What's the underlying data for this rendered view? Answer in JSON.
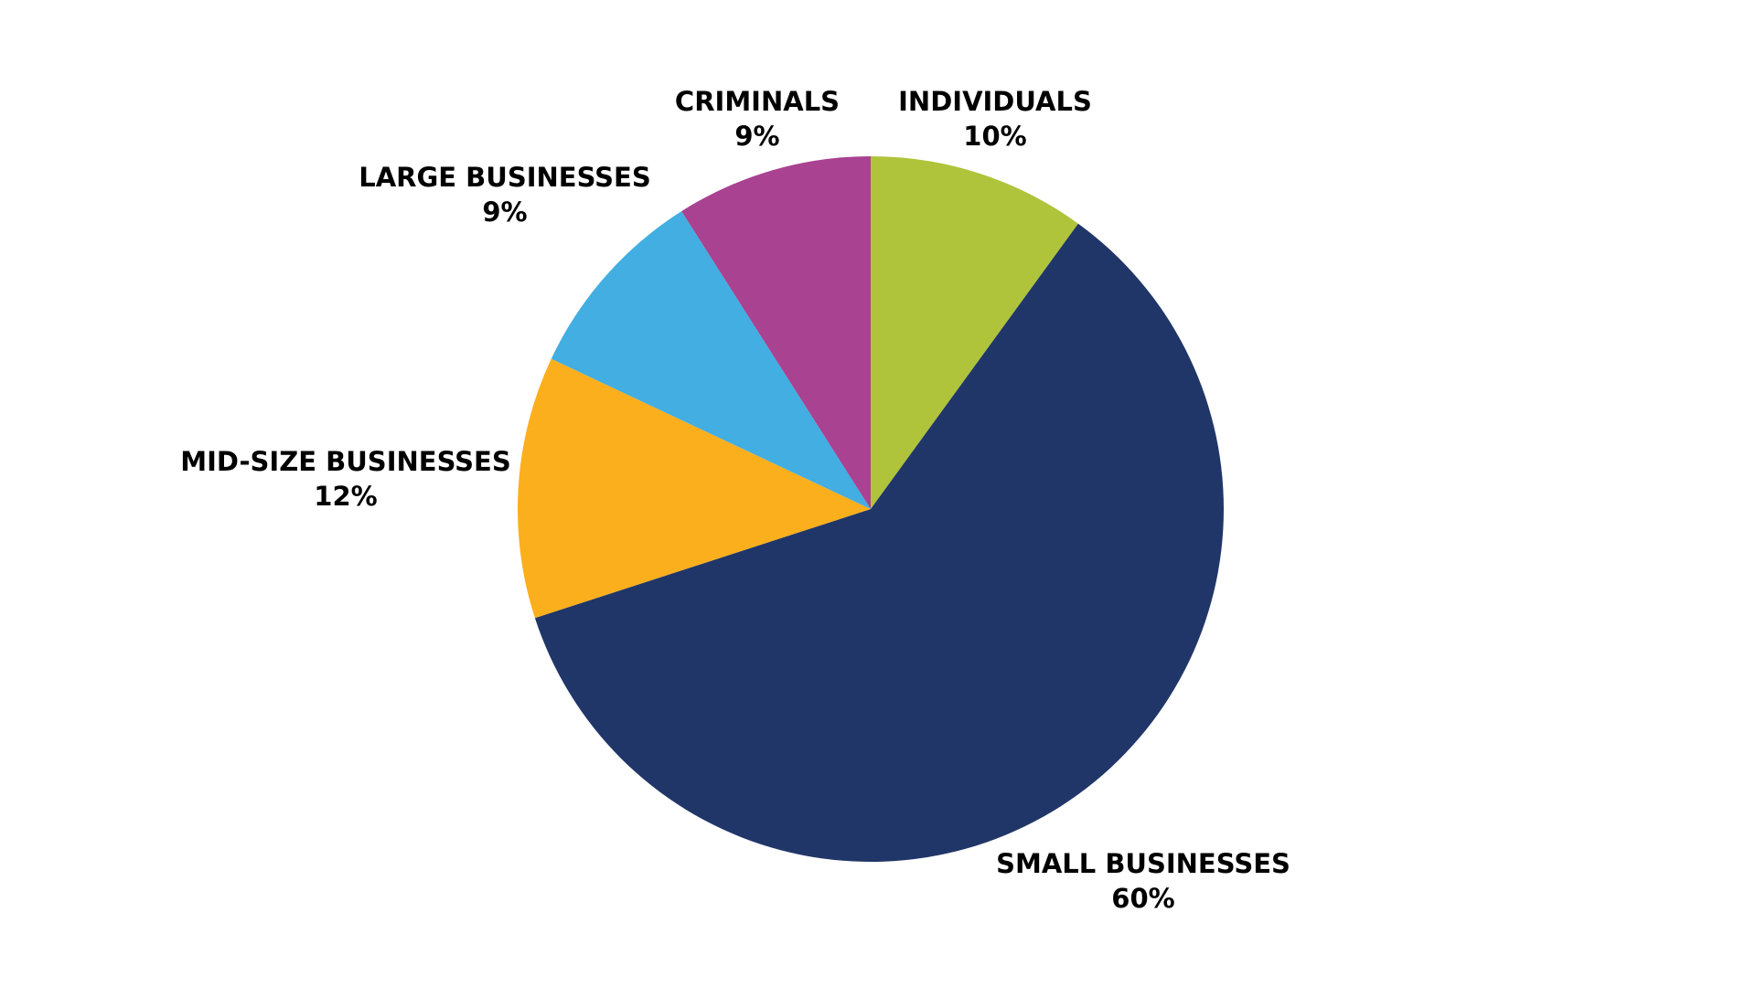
{
  "chart_data": {
    "type": "pie",
    "title": "",
    "start_angle_deg": 0,
    "direction": "clockwise",
    "slices": [
      {
        "label": "INDIVIDUALS",
        "value": 10,
        "display": "10%",
        "color": "#AFC43A"
      },
      {
        "label": "SMALL BUSINESSES",
        "value": 60,
        "display": "60%",
        "color": "#213668"
      },
      {
        "label": "MID-SIZE BUSINESSES",
        "value": 12,
        "display": "12%",
        "color": "#FBAF1D"
      },
      {
        "label": "LARGE BUSINESSES",
        "value": 9,
        "display": "9%",
        "color": "#42AEE2"
      },
      {
        "label": "CRIMINALS",
        "value": 9,
        "display": "9%",
        "color": "#A94290"
      }
    ]
  }
}
